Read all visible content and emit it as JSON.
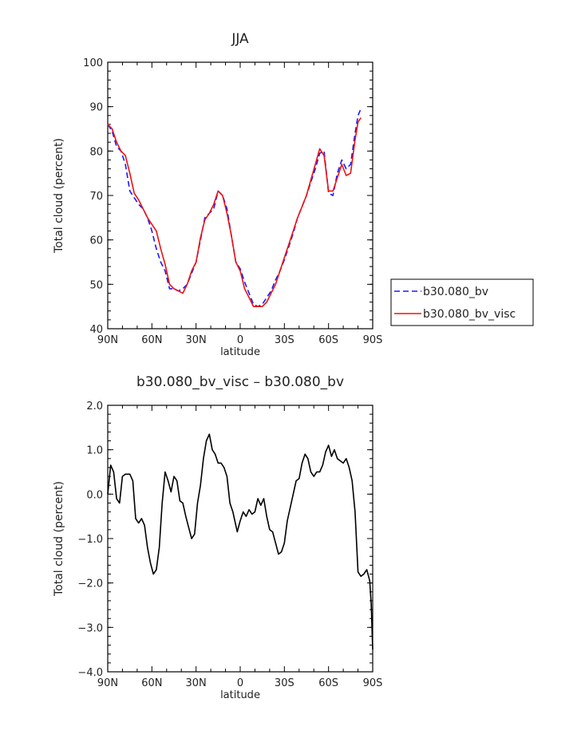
{
  "chart_data": [
    {
      "type": "line",
      "title": "JJA",
      "xlabel": "latitude",
      "ylabel": "Total cloud (percent)",
      "xlim": [
        90,
        -90
      ],
      "ylim": [
        40,
        100
      ],
      "x_ticks": [
        90,
        60,
        30,
        0,
        -30,
        -60,
        -90
      ],
      "x_tick_labels": [
        "90N",
        "60N",
        "30N",
        "0",
        "30S",
        "60S",
        "90S"
      ],
      "y_ticks": [
        40,
        50,
        60,
        70,
        80,
        90,
        100
      ],
      "y_tick_labels": [
        "40",
        "50",
        "60",
        "70",
        "80",
        "90",
        "100"
      ],
      "legend": "right",
      "series": [
        {
          "name": "b30.080_bv",
          "color": "#1a1aff",
          "dash": "dashed",
          "points": [
            [
              90,
              86
            ],
            [
              87,
              84.5
            ],
            [
              84,
              81
            ],
            [
              81,
              80
            ],
            [
              78,
              77
            ],
            [
              75,
              71
            ],
            [
              72,
              69.5
            ],
            [
              69,
              68
            ],
            [
              66,
              67
            ],
            [
              63,
              65
            ],
            [
              60,
              62
            ],
            [
              57,
              58
            ],
            [
              54,
              55
            ],
            [
              51,
              53
            ],
            [
              48,
              49
            ],
            [
              45,
              49
            ],
            [
              42,
              48.5
            ],
            [
              39,
              49
            ],
            [
              36,
              50
            ],
            [
              33,
              52.5
            ],
            [
              30,
              55
            ],
            [
              27,
              60
            ],
            [
              24,
              65
            ],
            [
              21,
              66
            ],
            [
              18,
              67
            ],
            [
              15,
              71
            ],
            [
              12,
              70
            ],
            [
              9,
              67
            ],
            [
              6,
              61
            ],
            [
              3,
              55
            ],
            [
              0,
              53.5
            ],
            [
              -3,
              50.5
            ],
            [
              -6,
              48
            ],
            [
              -9,
              45.5
            ],
            [
              -12,
              45
            ],
            [
              -15,
              45.5
            ],
            [
              -18,
              47
            ],
            [
              -21,
              48.5
            ],
            [
              -24,
              51
            ],
            [
              -27,
              53
            ],
            [
              -30,
              55.5
            ],
            [
              -33,
              58.5
            ],
            [
              -36,
              61.5
            ],
            [
              -39,
              65
            ],
            [
              -42,
              67.5
            ],
            [
              -45,
              70
            ],
            [
              -48,
              73
            ],
            [
              -51,
              76
            ],
            [
              -54,
              79.5
            ],
            [
              -57,
              80
            ],
            [
              -60,
              70.5
            ],
            [
              -63,
              70
            ],
            [
              -66,
              75
            ],
            [
              -69,
              78
            ],
            [
              -72,
              76
            ],
            [
              -75,
              77
            ],
            [
              -78,
              84
            ],
            [
              -80,
              88
            ],
            [
              -82,
              89.5
            ]
          ]
        },
        {
          "name": "b30.080_bv_visc",
          "color": "#ee1111",
          "dash": "solid",
          "points": [
            [
              90,
              86
            ],
            [
              87,
              85
            ],
            [
              84,
              82
            ],
            [
              81,
              80
            ],
            [
              78,
              79
            ],
            [
              75,
              75
            ],
            [
              72,
              70.5
            ],
            [
              69,
              69
            ],
            [
              66,
              67
            ],
            [
              63,
              65
            ],
            [
              60,
              63.5
            ],
            [
              57,
              62
            ],
            [
              54,
              58
            ],
            [
              51,
              54.5
            ],
            [
              48,
              50
            ],
            [
              45,
              49
            ],
            [
              42,
              48.5
            ],
            [
              39,
              48
            ],
            [
              36,
              50
            ],
            [
              33,
              53
            ],
            [
              30,
              55
            ],
            [
              27,
              60.5
            ],
            [
              24,
              64.5
            ],
            [
              21,
              66
            ],
            [
              18,
              68
            ],
            [
              15,
              71
            ],
            [
              12,
              70
            ],
            [
              9,
              66
            ],
            [
              6,
              61
            ],
            [
              3,
              55
            ],
            [
              0,
              53
            ],
            [
              -3,
              49
            ],
            [
              -6,
              47
            ],
            [
              -9,
              45
            ],
            [
              -12,
              45
            ],
            [
              -15,
              45
            ],
            [
              -18,
              46
            ],
            [
              -21,
              48
            ],
            [
              -24,
              50
            ],
            [
              -27,
              53
            ],
            [
              -30,
              56
            ],
            [
              -33,
              59
            ],
            [
              -36,
              62
            ],
            [
              -39,
              65
            ],
            [
              -42,
              67.5
            ],
            [
              -45,
              70
            ],
            [
              -48,
              73.5
            ],
            [
              -51,
              77
            ],
            [
              -54,
              80.5
            ],
            [
              -57,
              79
            ],
            [
              -60,
              71
            ],
            [
              -63,
              71
            ],
            [
              -66,
              74
            ],
            [
              -69,
              77
            ],
            [
              -72,
              74.5
            ],
            [
              -75,
              75
            ],
            [
              -78,
              82.5
            ],
            [
              -80,
              86.5
            ],
            [
              -82,
              87.5
            ]
          ]
        }
      ]
    },
    {
      "type": "line",
      "title": "b30.080_bv_visc – b30.080_bv",
      "xlabel": "latitude",
      "ylabel": "Total cloud (percent)",
      "xlim": [
        90,
        -90
      ],
      "ylim": [
        -4,
        2
      ],
      "x_ticks": [
        90,
        60,
        30,
        0,
        -30,
        -60,
        -90
      ],
      "x_tick_labels": [
        "90N",
        "60N",
        "30N",
        "0",
        "30S",
        "60S",
        "90S"
      ],
      "y_ticks": [
        -4,
        -3,
        -2,
        -1,
        0,
        1,
        2
      ],
      "y_tick_labels": [
        "−4.0",
        "−3.0",
        "−2.0",
        "−1.0",
        "0.0",
        "1.0",
        "2.0"
      ],
      "series": [
        {
          "color": "#000000",
          "dash": "solid",
          "points": [
            [
              90,
              0
            ],
            [
              88,
              0.65
            ],
            [
              86,
              0.5
            ],
            [
              84,
              -0.1
            ],
            [
              82,
              -0.2
            ],
            [
              80,
              0.4
            ],
            [
              78,
              0.45
            ],
            [
              75,
              0.45
            ],
            [
              73,
              0.3
            ],
            [
              71,
              -0.55
            ],
            [
              69,
              -0.65
            ],
            [
              67,
              -0.55
            ],
            [
              65,
              -0.7
            ],
            [
              63,
              -1.2
            ],
            [
              61,
              -1.55
            ],
            [
              59,
              -1.8
            ],
            [
              57,
              -1.7
            ],
            [
              55,
              -1.2
            ],
            [
              53,
              -0.2
            ],
            [
              51,
              0.5
            ],
            [
              49,
              0.3
            ],
            [
              47,
              0.05
            ],
            [
              45,
              0.4
            ],
            [
              43,
              0.3
            ],
            [
              41,
              -0.15
            ],
            [
              39,
              -0.2
            ],
            [
              37,
              -0.5
            ],
            [
              35,
              -0.75
            ],
            [
              33,
              -1
            ],
            [
              31,
              -0.9
            ],
            [
              29,
              -0.2
            ],
            [
              27,
              0.2
            ],
            [
              25,
              0.8
            ],
            [
              23,
              1.2
            ],
            [
              21,
              1.35
            ],
            [
              19,
              1
            ],
            [
              17,
              0.9
            ],
            [
              15,
              0.7
            ],
            [
              13,
              0.7
            ],
            [
              11,
              0.6
            ],
            [
              9,
              0.4
            ],
            [
              7,
              -0.2
            ],
            [
              5,
              -0.4
            ],
            [
              2,
              -0.85
            ],
            [
              0,
              -0.6
            ],
            [
              -2,
              -0.4
            ],
            [
              -4,
              -0.5
            ],
            [
              -6,
              -0.35
            ],
            [
              -8,
              -0.45
            ],
            [
              -10,
              -0.4
            ],
            [
              -12,
              -0.1
            ],
            [
              -14,
              -0.25
            ],
            [
              -16,
              -0.1
            ],
            [
              -18,
              -0.5
            ],
            [
              -20,
              -0.8
            ],
            [
              -22,
              -0.85
            ],
            [
              -24,
              -1.1
            ],
            [
              -26,
              -1.35
            ],
            [
              -28,
              -1.3
            ],
            [
              -30,
              -1.1
            ],
            [
              -32,
              -0.6
            ],
            [
              -34,
              -0.3
            ],
            [
              -36,
              0
            ],
            [
              -38,
              0.3
            ],
            [
              -40,
              0.35
            ],
            [
              -42,
              0.7
            ],
            [
              -44,
              0.9
            ],
            [
              -46,
              0.8
            ],
            [
              -48,
              0.5
            ],
            [
              -50,
              0.4
            ],
            [
              -52,
              0.5
            ],
            [
              -54,
              0.5
            ],
            [
              -56,
              0.65
            ],
            [
              -58,
              0.95
            ],
            [
              -60,
              1.1
            ],
            [
              -62,
              0.85
            ],
            [
              -64,
              1.0
            ],
            [
              -66,
              0.8
            ],
            [
              -68,
              0.75
            ],
            [
              -70,
              0.7
            ],
            [
              -72,
              0.8
            ],
            [
              -74,
              0.6
            ],
            [
              -76,
              0.3
            ],
            [
              -78,
              -0.4
            ],
            [
              -80,
              -1.75
            ],
            [
              -82,
              -1.85
            ],
            [
              -84,
              -1.8
            ],
            [
              -86,
              -1.7
            ],
            [
              -88,
              -1.95
            ],
            [
              -89,
              -2.5
            ],
            [
              -90,
              -3.5
            ]
          ]
        }
      ]
    }
  ]
}
